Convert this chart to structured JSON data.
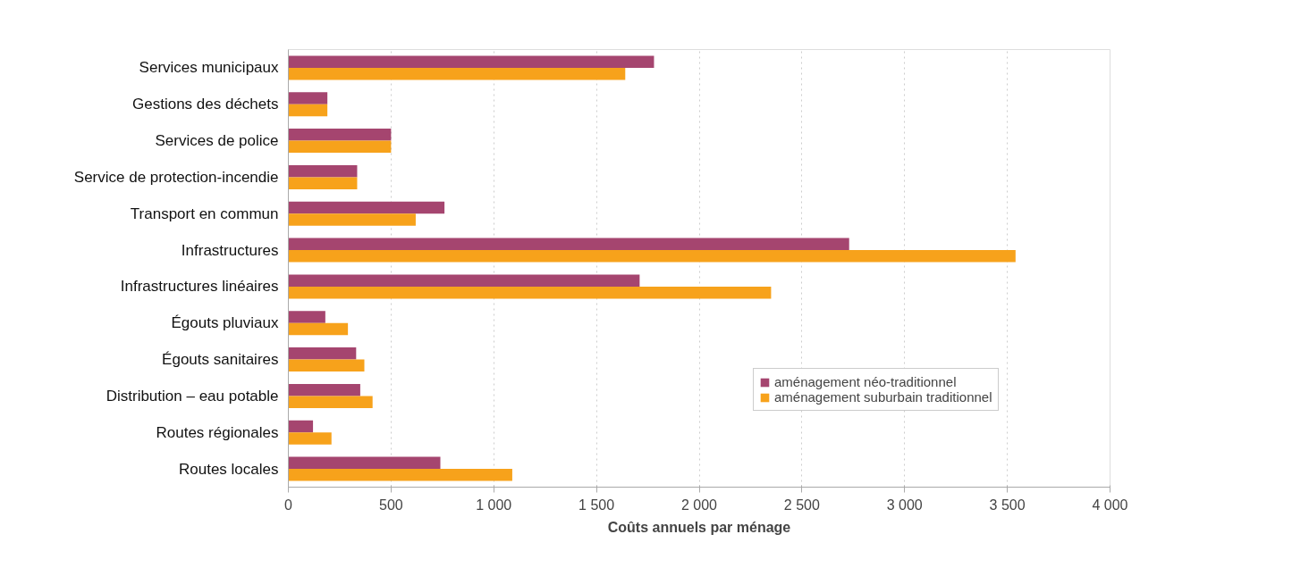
{
  "chart_data": {
    "type": "bar",
    "orientation": "horizontal",
    "xlabel": "Coûts annuels par ménage",
    "categories": [
      "Services municipaux",
      "Gestions des déchets",
      "Services de police",
      "Service de protection-incendie",
      "Transport en commun",
      "Infrastructures",
      "Infrastructures linéaires",
      "Égouts pluviaux",
      "Égouts sanitaires",
      "Distribution – eau potable",
      "Routes régionales",
      "Routes locales"
    ],
    "series": [
      {
        "name": "aménagement néo-traditionnel",
        "color": "#a5456f",
        "values": [
          1780,
          190,
          500,
          335,
          760,
          2730,
          1710,
          180,
          330,
          350,
          120,
          740
        ]
      },
      {
        "name": "aménagement suburbain traditionnel",
        "color": "#f7a21b",
        "values": [
          1640,
          190,
          500,
          335,
          620,
          3540,
          2350,
          290,
          370,
          410,
          210,
          1090
        ]
      }
    ],
    "xlim": [
      0,
      4000
    ],
    "xticks": [
      0,
      {
        "value": 500,
        "label": "500"
      },
      {
        "value": 1000,
        "label": "1 000"
      },
      {
        "value": 1500,
        "label": "1 500"
      },
      {
        "value": 2000,
        "label": "2 000"
      },
      {
        "value": 2500,
        "label": "2 500"
      },
      {
        "value": 3000,
        "label": "3 000"
      },
      {
        "value": 3500,
        "label": "3 500"
      },
      {
        "value": 4000,
        "label": "4 000"
      }
    ],
    "grid": "x",
    "legend": "bottom right"
  }
}
